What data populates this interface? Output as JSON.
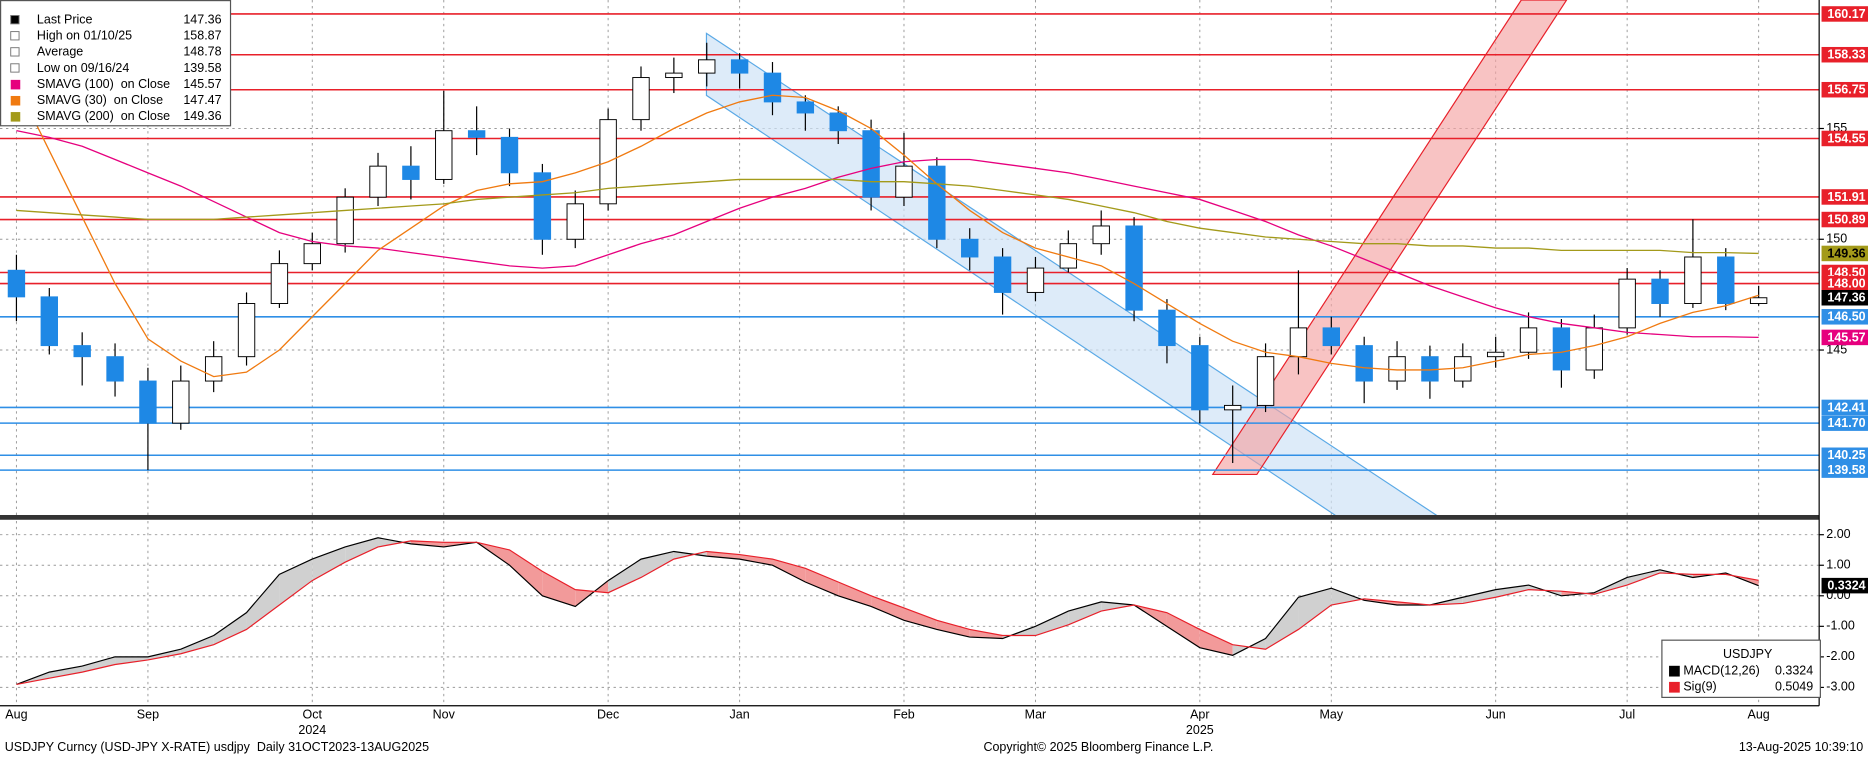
{
  "chart_data": [
    {
      "type": "candlestick",
      "categories": [
        "Aug",
        null,
        null,
        null,
        "Sep",
        null,
        null,
        null,
        null,
        "Oct",
        null,
        null,
        null,
        "Nov",
        null,
        null,
        null,
        null,
        "Dec",
        null,
        null,
        null,
        "Jan",
        null,
        null,
        null,
        null,
        "Feb",
        null,
        null,
        null,
        "Mar",
        null,
        null,
        null,
        null,
        "Apr",
        null,
        null,
        null,
        "May",
        null,
        null,
        null,
        null,
        "Jun",
        null,
        null,
        null,
        "Jul",
        null,
        null,
        null,
        "Aug"
      ],
      "years": [
        null,
        null,
        null,
        null,
        null,
        null,
        null,
        null,
        null,
        "2024",
        null,
        null,
        null,
        null,
        null,
        null,
        null,
        null,
        null,
        null,
        null,
        null,
        null,
        null,
        null,
        null,
        null,
        null,
        null,
        null,
        null,
        null,
        null,
        null,
        null,
        null,
        "2025",
        null,
        null,
        null,
        null,
        null,
        null,
        null,
        null,
        null,
        null,
        null,
        null,
        null,
        null,
        null,
        null,
        null
      ],
      "open": [
        148.6,
        147.4,
        145.2,
        144.7,
        143.6,
        141.7,
        143.6,
        144.7,
        147.1,
        148.9,
        149.8,
        151.9,
        153.3,
        152.7,
        154.9,
        154.6,
        153.0,
        150.0,
        151.6,
        155.4,
        157.3,
        157.5,
        158.1,
        157.5,
        156.2,
        155.7,
        154.9,
        151.9,
        153.3,
        150.0,
        149.2,
        147.6,
        148.7,
        149.8,
        150.6,
        146.8,
        145.2,
        142.3,
        142.5,
        144.7,
        146.0,
        145.2,
        143.6,
        144.7,
        143.6,
        144.7,
        144.9,
        146.0,
        144.1,
        146.0,
        148.2,
        147.1,
        149.2,
        147.1
      ],
      "high": [
        149.3,
        147.8,
        145.8,
        145.3,
        144.2,
        144.3,
        145.4,
        147.6,
        149.5,
        150.3,
        152.3,
        153.9,
        154.2,
        156.7,
        156.0,
        155.0,
        153.4,
        152.2,
        155.9,
        157.8,
        158.2,
        158.87,
        158.4,
        158.0,
        156.5,
        156.0,
        155.4,
        154.8,
        153.7,
        150.5,
        149.6,
        149.2,
        150.4,
        151.3,
        151.0,
        147.3,
        145.6,
        143.4,
        145.3,
        148.6,
        146.5,
        145.6,
        145.4,
        145.2,
        145.3,
        145.6,
        146.7,
        146.4,
        146.6,
        148.7,
        148.6,
        150.9,
        149.6,
        147.9
      ],
      "low": [
        146.3,
        144.8,
        143.4,
        142.9,
        139.58,
        141.4,
        143.1,
        144.3,
        146.9,
        148.6,
        149.4,
        151.5,
        151.8,
        152.5,
        153.8,
        152.4,
        149.3,
        149.6,
        151.3,
        154.9,
        156.6,
        156.9,
        156.8,
        155.6,
        154.9,
        154.3,
        151.3,
        151.5,
        149.6,
        148.6,
        146.6,
        147.2,
        148.5,
        149.3,
        146.3,
        144.4,
        141.7,
        139.9,
        142.2,
        143.9,
        144.8,
        142.6,
        143.2,
        142.8,
        143.3,
        144.2,
        144.6,
        143.3,
        143.7,
        145.7,
        146.5,
        146.9,
        146.8,
        147.0
      ],
      "close": [
        147.4,
        145.2,
        144.7,
        143.6,
        141.7,
        143.6,
        144.7,
        147.1,
        148.9,
        149.8,
        151.9,
        153.3,
        152.7,
        154.9,
        154.6,
        153.0,
        150.0,
        151.6,
        155.4,
        157.3,
        157.5,
        158.1,
        157.5,
        156.2,
        155.7,
        154.9,
        151.9,
        153.3,
        150.0,
        149.2,
        147.6,
        148.7,
        149.8,
        150.6,
        146.8,
        145.2,
        142.3,
        142.5,
        144.7,
        146.0,
        145.2,
        143.6,
        144.7,
        143.6,
        144.7,
        144.9,
        146.0,
        144.1,
        146.0,
        148.2,
        147.1,
        149.2,
        147.1,
        147.36
      ],
      "up_color": "#ffffff",
      "down_color": "#1e88e5",
      "legend": [
        {
          "label": "Last Price",
          "value": 147.36
        },
        {
          "label": "High on 01/10/25",
          "value": 158.87
        },
        {
          "label": "Average",
          "value": 148.78
        },
        {
          "label": "Low on 09/16/24",
          "value": 139.58
        }
      ],
      "series": [
        {
          "name": "SMAVG (100)  on Close",
          "color": "#e6007e",
          "last": 145.57,
          "values": [
            154.9,
            154.6,
            154.2,
            153.6,
            153.0,
            152.4,
            151.7,
            151.0,
            150.3,
            149.9,
            149.7,
            149.6,
            149.4,
            149.2,
            149.0,
            148.8,
            148.7,
            148.8,
            149.3,
            149.8,
            150.2,
            150.8,
            151.4,
            151.9,
            152.3,
            152.8,
            153.2,
            153.5,
            153.6,
            153.6,
            153.4,
            153.2,
            153.0,
            152.7,
            152.4,
            152.1,
            151.8,
            151.3,
            150.8,
            150.2,
            149.7,
            149.1,
            148.5,
            147.9,
            147.4,
            146.9,
            146.5,
            146.2,
            146.0,
            145.8,
            145.7,
            145.6,
            145.6,
            145.57
          ]
        },
        {
          "name": "SMAVG (30)  on Close",
          "color": "#f07a10",
          "last": 147.47,
          "values": [
            157.0,
            154.0,
            151.0,
            148.0,
            145.5,
            144.5,
            143.8,
            144.0,
            145.0,
            146.5,
            148.0,
            149.5,
            150.5,
            151.5,
            152.2,
            152.5,
            152.6,
            153.0,
            153.5,
            154.2,
            155.0,
            155.7,
            156.2,
            156.5,
            156.4,
            155.8,
            155.0,
            153.8,
            152.5,
            151.3,
            150.3,
            149.6,
            149.2,
            148.8,
            148.0,
            147.1,
            146.2,
            145.4,
            144.9,
            144.7,
            144.4,
            144.2,
            144.1,
            144.1,
            144.2,
            144.5,
            144.8,
            144.9,
            145.2,
            145.6,
            146.2,
            146.7,
            147.0,
            147.47
          ]
        },
        {
          "name": "SMAVG (200)  on Close",
          "color": "#a39a1a",
          "last": 149.36,
          "values": [
            151.3,
            151.2,
            151.1,
            151.0,
            150.9,
            150.9,
            150.9,
            151.0,
            151.1,
            151.2,
            151.3,
            151.4,
            151.5,
            151.6,
            151.8,
            151.9,
            152.0,
            152.1,
            152.3,
            152.4,
            152.5,
            152.6,
            152.7,
            152.7,
            152.7,
            152.7,
            152.6,
            152.6,
            152.5,
            152.4,
            152.2,
            152.0,
            151.8,
            151.5,
            151.2,
            150.8,
            150.5,
            150.3,
            150.1,
            150.0,
            149.9,
            149.8,
            149.8,
            149.7,
            149.7,
            149.6,
            149.6,
            149.5,
            149.5,
            149.5,
            149.5,
            149.4,
            149.4,
            149.36
          ]
        }
      ],
      "levels": [
        {
          "value": 160.17,
          "color": "#e8202a",
          "line": true
        },
        {
          "value": 158.33,
          "color": "#e8202a",
          "line": true
        },
        {
          "value": 156.75,
          "color": "#e8202a",
          "line": true
        },
        {
          "value": 154.55,
          "color": "#e8202a",
          "line": true
        },
        {
          "value": 151.91,
          "color": "#e8202a",
          "line": true
        },
        {
          "value": 150.89,
          "color": "#e8202a",
          "line": true
        },
        {
          "value": 149.36,
          "color": "#a39a1a",
          "line": false
        },
        {
          "value": 148.5,
          "label": "148.50",
          "color": "#e8202a",
          "line": true
        },
        {
          "value": 148,
          "label": "148.00",
          "color": "#e8202a",
          "line": true
        },
        {
          "value": 147.36,
          "color": "#000000",
          "line": false
        },
        {
          "value": 146.5,
          "label": "146.50",
          "color": "#2f8fe6",
          "line": true
        },
        {
          "value": 145.57,
          "color": "#e6007e",
          "line": false
        },
        {
          "value": 142.41,
          "color": "#2f8fe6",
          "line": true
        },
        {
          "value": 141.7,
          "label": "141.70",
          "color": "#2f8fe6",
          "line": true
        },
        {
          "value": 140.25,
          "color": "#2f8fe6",
          "line": true
        },
        {
          "value": 139.58,
          "color": "#2f8fe6",
          "line": true
        }
      ],
      "ylim": [
        137.5,
        160.8
      ],
      "yticks": [
        145,
        150,
        155
      ],
      "grid": true
    },
    {
      "type": "line",
      "title": "USDJPY",
      "series": [
        {
          "name": "MACD(12,26)",
          "color": "#000000",
          "last": 0.3324,
          "values": [
            -2.9,
            -2.5,
            -2.3,
            -2.0,
            -2.0,
            -1.75,
            -1.3,
            -0.55,
            0.7,
            1.2,
            1.6,
            1.9,
            1.7,
            1.6,
            1.75,
            1.0,
            0.0,
            -0.35,
            0.5,
            1.2,
            1.45,
            1.3,
            1.2,
            1.0,
            0.45,
            0.0,
            -0.35,
            -0.8,
            -1.1,
            -1.35,
            -1.4,
            -1.0,
            -0.5,
            -0.2,
            -0.3,
            -1.0,
            -1.7,
            -1.95,
            -1.4,
            -0.05,
            0.25,
            -0.15,
            -0.3,
            -0.3,
            -0.05,
            0.2,
            0.35,
            0.0,
            0.1,
            0.6,
            0.85,
            0.6,
            0.75,
            0.3324
          ]
        },
        {
          "name": "Sig(9)",
          "color": "#e8202a",
          "last": 0.5049,
          "values": [
            -2.9,
            -2.7,
            -2.5,
            -2.25,
            -2.1,
            -1.9,
            -1.6,
            -1.1,
            -0.3,
            0.5,
            1.1,
            1.6,
            1.8,
            1.75,
            1.75,
            1.5,
            0.8,
            0.2,
            0.1,
            0.6,
            1.2,
            1.45,
            1.35,
            1.2,
            0.9,
            0.45,
            0.0,
            -0.4,
            -0.8,
            -1.1,
            -1.3,
            -1.3,
            -0.95,
            -0.5,
            -0.3,
            -0.55,
            -1.1,
            -1.6,
            -1.75,
            -1.1,
            -0.3,
            -0.1,
            -0.2,
            -0.3,
            -0.25,
            -0.05,
            0.2,
            0.15,
            0.05,
            0.35,
            0.75,
            0.7,
            0.7,
            0.5049
          ]
        }
      ],
      "ylim": [
        -3.6,
        2.45
      ],
      "yticks": [
        {
          "value": 2,
          "label": "2.00"
        },
        {
          "value": 1,
          "label": "1.00"
        },
        {
          "value": 0,
          "label": "0.00"
        },
        {
          "value": -1,
          "label": "-1.00"
        },
        {
          "value": -2,
          "label": "-2.00"
        },
        {
          "value": -3,
          "label": "-3.00"
        }
      ],
      "grid": true
    }
  ],
  "footer": {
    "left": "USDJPY Curncy (USD-JPY X-RATE) usdjpy  Daily 31OCT2023-13AUG2025",
    "center": "Copyright© 2025 Bloomberg Finance L.P.",
    "right": "13-Aug-2025 10:39:10"
  }
}
